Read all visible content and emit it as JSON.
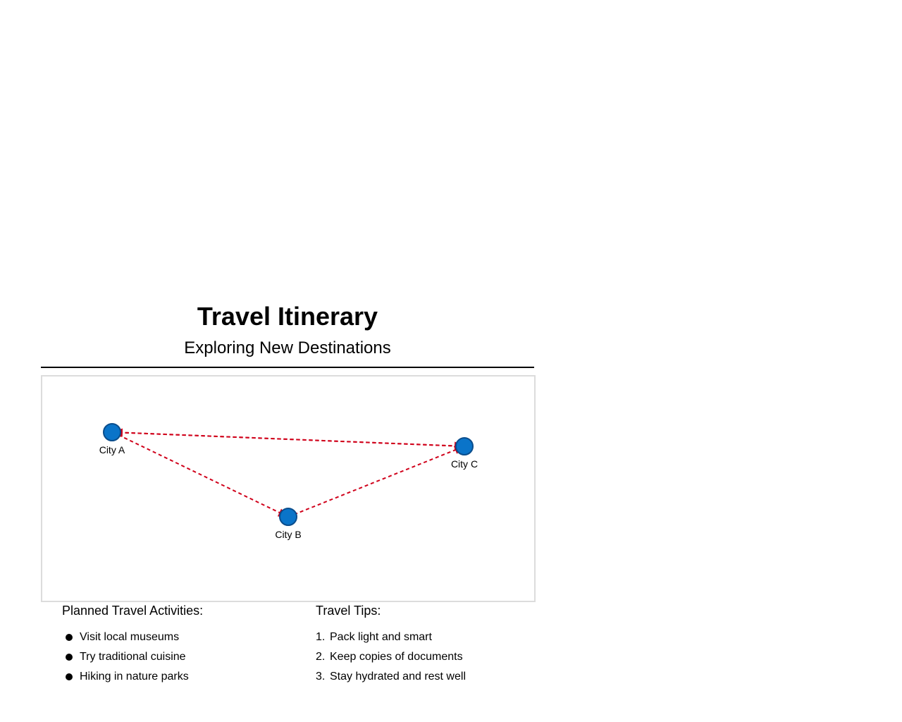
{
  "header": {
    "title": "Travel Itinerary",
    "subtitle": "Exploring New Destinations"
  },
  "map": {
    "cities": [
      {
        "id": "a",
        "label": "City A"
      },
      {
        "id": "b",
        "label": "City B"
      },
      {
        "id": "c",
        "label": "City C"
      }
    ],
    "routes": [
      {
        "from": "City A",
        "to": "City B"
      },
      {
        "from": "City B",
        "to": "City C"
      },
      {
        "from": "City A",
        "to": "City C"
      }
    ],
    "colors": {
      "city_fill": "#0a74c9",
      "city_stroke": "#0a4d8c",
      "route": "#d0021b",
      "border": "#dcdcdc"
    }
  },
  "activities": {
    "title": "Planned Travel Activities:",
    "items": [
      "Visit local museums",
      "Try traditional cuisine",
      "Hiking in nature parks"
    ]
  },
  "tips": {
    "title": "Travel Tips:",
    "items": [
      {
        "num": "1.",
        "text": "Pack light and smart"
      },
      {
        "num": "2.",
        "text": "Keep copies of documents"
      },
      {
        "num": "3.",
        "text": "Stay hydrated and rest well"
      }
    ]
  }
}
